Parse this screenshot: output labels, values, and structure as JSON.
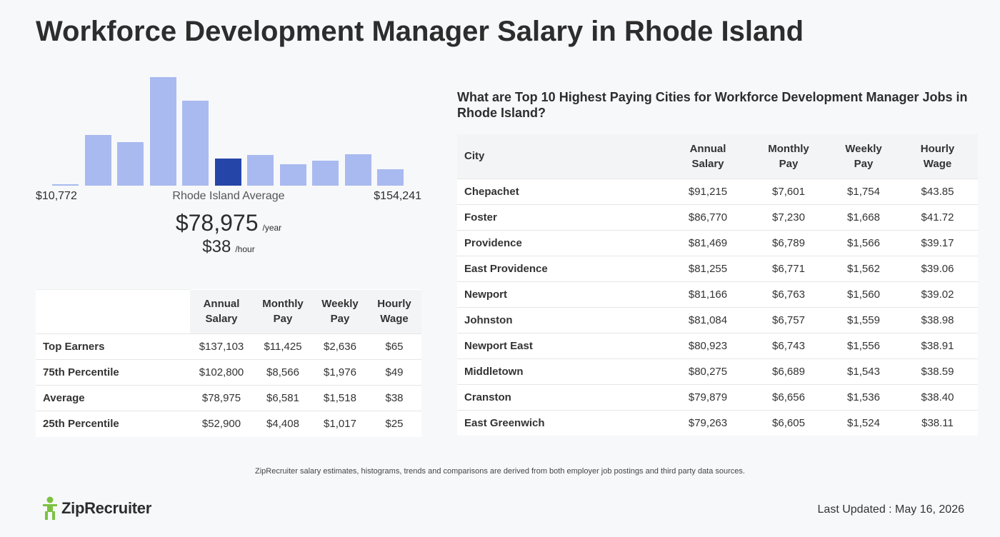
{
  "title": "Workforce Development Manager Salary in Rhode Island",
  "histogram": {
    "bars": [
      0.01,
      0.47,
      0.4,
      1.0,
      0.78,
      0.25,
      0.28,
      0.2,
      0.23,
      0.29,
      0.15
    ],
    "highlight_index": 5,
    "min_label": "$10,772",
    "center_label": "Rhode Island Average",
    "max_label": "$154,241"
  },
  "average": {
    "yearly": "$78,975",
    "yearly_unit": "/year",
    "hourly": "$38",
    "hourly_unit": "/hour"
  },
  "percentile_table": {
    "headers": [
      [
        "Annual",
        "Salary"
      ],
      [
        "Monthly",
        "Pay"
      ],
      [
        "Weekly",
        "Pay"
      ],
      [
        "Hourly",
        "Wage"
      ]
    ],
    "rows": [
      {
        "label": "Top Earners",
        "values": [
          "$137,103",
          "$11,425",
          "$2,636",
          "$65"
        ]
      },
      {
        "label": "75th Percentile",
        "values": [
          "$102,800",
          "$8,566",
          "$1,976",
          "$49"
        ]
      },
      {
        "label": "Average",
        "values": [
          "$78,975",
          "$6,581",
          "$1,518",
          "$38"
        ]
      },
      {
        "label": "25th Percentile",
        "values": [
          "$52,900",
          "$4,408",
          "$1,017",
          "$25"
        ]
      }
    ]
  },
  "cities": {
    "title": "What are Top 10 Highest Paying Cities for Workforce Development Manager Jobs in Rhode Island?",
    "city_header": "City",
    "headers": [
      [
        "Annual",
        "Salary"
      ],
      [
        "Monthly",
        "Pay"
      ],
      [
        "Weekly",
        "Pay"
      ],
      [
        "Hourly",
        "Wage"
      ]
    ],
    "rows": [
      {
        "city": "Chepachet",
        "values": [
          "$91,215",
          "$7,601",
          "$1,754",
          "$43.85"
        ]
      },
      {
        "city": "Foster",
        "values": [
          "$86,770",
          "$7,230",
          "$1,668",
          "$41.72"
        ]
      },
      {
        "city": "Providence",
        "values": [
          "$81,469",
          "$6,789",
          "$1,566",
          "$39.17"
        ]
      },
      {
        "city": "East Providence",
        "values": [
          "$81,255",
          "$6,771",
          "$1,562",
          "$39.06"
        ]
      },
      {
        "city": "Newport",
        "values": [
          "$81,166",
          "$6,763",
          "$1,560",
          "$39.02"
        ]
      },
      {
        "city": "Johnston",
        "values": [
          "$81,084",
          "$6,757",
          "$1,559",
          "$38.98"
        ]
      },
      {
        "city": "Newport East",
        "values": [
          "$80,923",
          "$6,743",
          "$1,556",
          "$38.91"
        ]
      },
      {
        "city": "Middletown",
        "values": [
          "$80,275",
          "$6,689",
          "$1,543",
          "$38.59"
        ]
      },
      {
        "city": "Cranston",
        "values": [
          "$79,879",
          "$6,656",
          "$1,536",
          "$38.40"
        ]
      },
      {
        "city": "East Greenwich",
        "values": [
          "$79,263",
          "$6,605",
          "$1,524",
          "$38.11"
        ]
      }
    ]
  },
  "footnote": "ZipRecruiter salary estimates, histograms, trends and comparisons are derived from both employer job postings and third party data sources.",
  "logo": {
    "text": "ZipRecruiter",
    "icon": "ziprecruiter-person-icon",
    "color": "#7cc242"
  },
  "last_updated": "Last Updated : May 16, 2026"
}
